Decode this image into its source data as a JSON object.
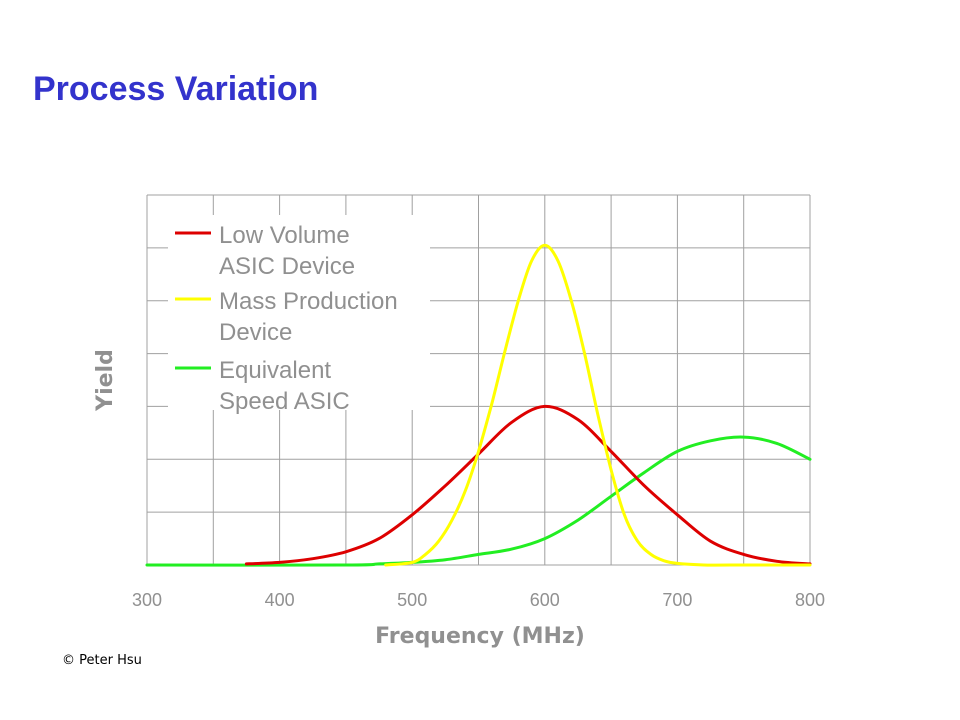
{
  "slide": {
    "title": "Process Variation",
    "copyright": "© Peter Hsu"
  },
  "chart_data": {
    "type": "line",
    "title": "",
    "xlabel": "Frequency (MHz)",
    "ylabel": "Yield",
    "xlim": [
      300,
      800
    ],
    "ylim": [
      0,
      7
    ],
    "x_ticks": [
      300,
      400,
      500,
      600,
      700,
      800
    ],
    "x_tick_labels": [
      "300",
      "400",
      "500",
      "600",
      "700",
      "800"
    ],
    "x_grid_step": 50,
    "y_grid_step": 1,
    "grid": true,
    "legend": "top-left",
    "series": [
      {
        "name": "Low Volume ASIC Device",
        "color": "#dd0000",
        "x": [
          375,
          400,
          425,
          450,
          475,
          500,
          525,
          550,
          575,
          600,
          625,
          650,
          675,
          700,
          725,
          750,
          775,
          800
        ],
        "y": [
          0.02,
          0.05,
          0.12,
          0.25,
          0.5,
          0.95,
          1.5,
          2.1,
          2.7,
          3.0,
          2.75,
          2.15,
          1.5,
          0.95,
          0.45,
          0.2,
          0.07,
          0.02
        ]
      },
      {
        "name": "Mass Production Device",
        "color": "#ffff00",
        "x": [
          480,
          500,
          510,
          520,
          530,
          540,
          550,
          560,
          570,
          580,
          590,
          600,
          610,
          620,
          630,
          640,
          650,
          660,
          670,
          680,
          690,
          700,
          720,
          740,
          800
        ],
        "y": [
          0.0,
          0.05,
          0.2,
          0.45,
          0.85,
          1.4,
          2.15,
          3.05,
          4.05,
          5.0,
          5.75,
          6.05,
          5.75,
          5.0,
          4.0,
          2.85,
          1.8,
          0.95,
          0.45,
          0.2,
          0.08,
          0.03,
          0.0,
          0.0,
          0.0
        ]
      },
      {
        "name": "Equivalent Speed ASIC",
        "color": "#22ee22",
        "x": [
          300,
          450,
          475,
          500,
          525,
          550,
          575,
          600,
          625,
          650,
          675,
          700,
          725,
          750,
          775,
          800
        ],
        "y": [
          0.0,
          0.0,
          0.02,
          0.05,
          0.1,
          0.2,
          0.3,
          0.5,
          0.85,
          1.3,
          1.75,
          2.15,
          2.35,
          2.42,
          2.3,
          2.0
        ]
      }
    ]
  }
}
